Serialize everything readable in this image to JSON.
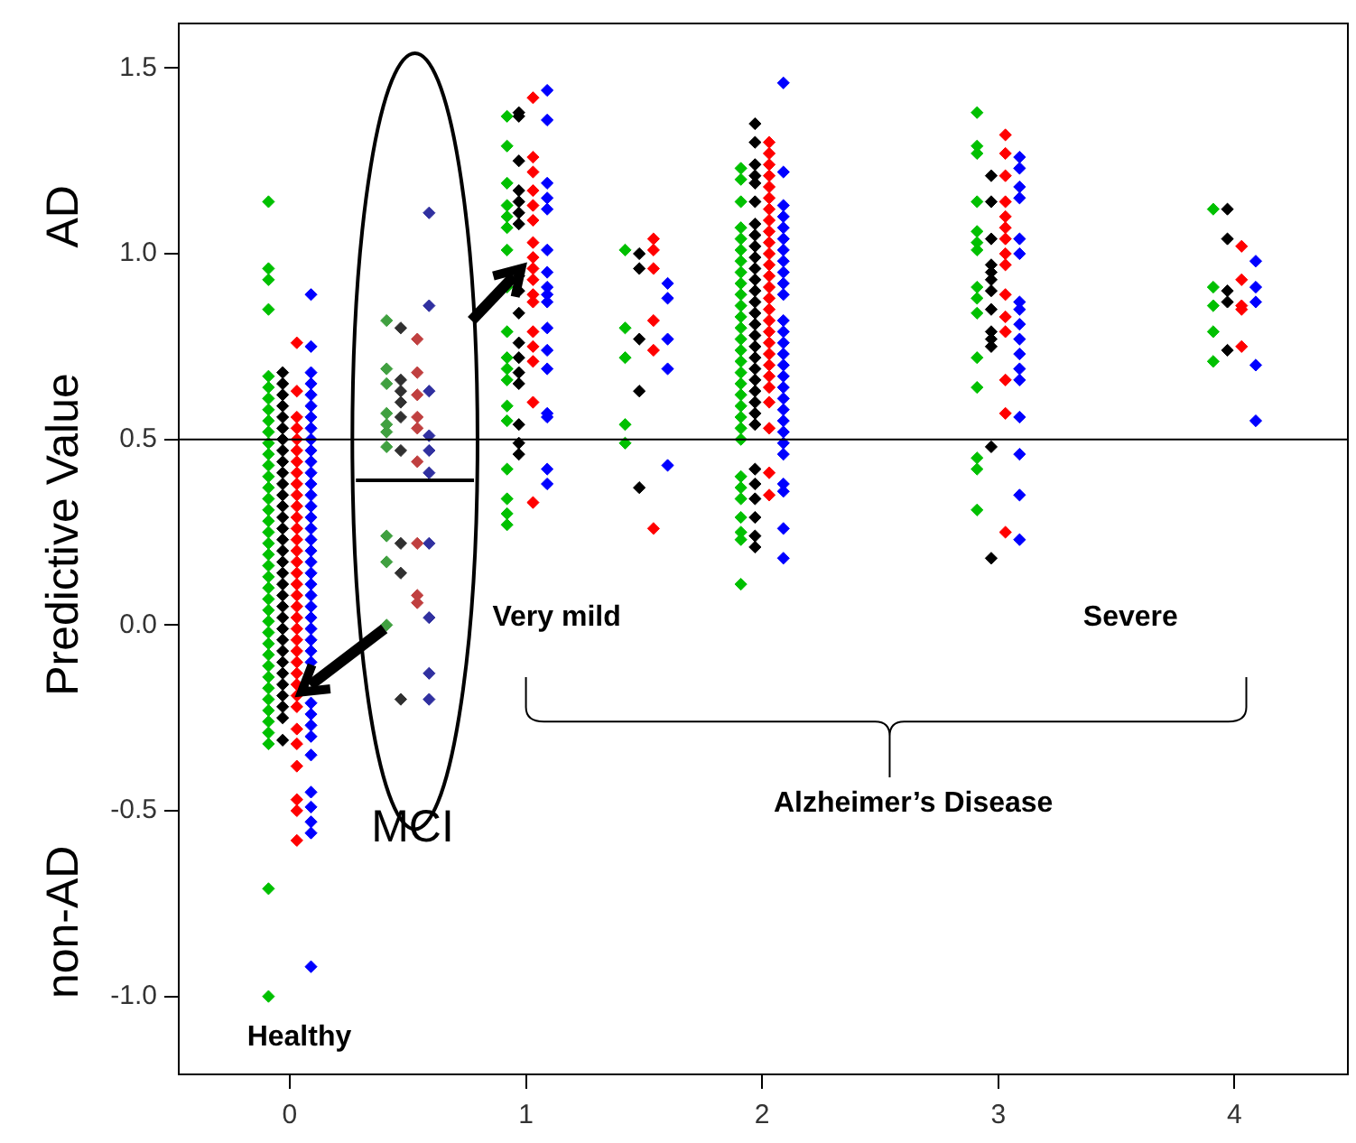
{
  "chart_data": {
    "type": "scatter",
    "ylabel": "Predictive Value",
    "xlim": [
      -0.47,
      4.48
    ],
    "ylim": [
      -1.21,
      1.62
    ],
    "xticks": [
      0,
      1,
      2,
      3,
      4
    ],
    "yticks": [
      {
        "value": -1,
        "label": "-1.0"
      },
      {
        "value": -0.5,
        "label": "-0.5"
      },
      {
        "value": 0,
        "label": "0.0"
      },
      {
        "value": 0.5,
        "label": "0.5"
      },
      {
        "value": 1,
        "label": "1.0"
      },
      {
        "value": 1.5,
        "label": "1.5"
      }
    ],
    "grid": false,
    "legend": false,
    "marker": "diamond",
    "ref_lines": [
      {
        "axis": "y",
        "value": 0.5,
        "color": "#000000"
      }
    ],
    "annotations": [
      "AD",
      "non-AD",
      "Healthy",
      "MCI",
      "Very mild",
      "Severe",
      "Alzheimer’s Disease"
    ],
    "series": [
      {
        "color": "#00c000",
        "x": [
          -0.09,
          -0.09,
          -0.09,
          -0.09,
          -0.09,
          -0.09,
          -0.09,
          -0.09,
          -0.09,
          -0.09,
          -0.09,
          -0.09,
          -0.09,
          -0.09,
          -0.09,
          -0.09,
          -0.09,
          -0.09,
          -0.09,
          -0.09,
          -0.09,
          -0.09,
          -0.09,
          -0.09,
          -0.09,
          -0.09,
          -0.09,
          -0.09,
          -0.09,
          -0.09,
          -0.09,
          -0.09,
          -0.09,
          -0.09,
          -0.09,
          -0.09,
          -0.09,
          -0.09,
          -0.09,
          -0.09,
          0.92,
          0.92,
          0.92,
          0.92,
          0.92,
          0.92,
          0.92,
          0.92,
          0.92,
          0.92,
          0.92,
          0.92,
          0.92,
          0.92,
          0.92,
          0.92,
          0.92,
          0.92,
          1.42,
          1.42,
          1.42,
          1.42,
          1.42,
          1.91,
          1.91,
          1.91,
          1.91,
          1.91,
          1.91,
          1.91,
          1.91,
          1.91,
          1.91,
          1.91,
          1.91,
          1.91,
          1.91,
          1.91,
          1.91,
          1.91,
          1.91,
          1.91,
          1.91,
          1.91,
          1.91,
          1.91,
          1.91,
          1.91,
          1.91,
          1.91,
          1.91,
          1.91,
          1.91,
          2.91,
          2.91,
          2.91,
          2.91,
          2.91,
          2.91,
          2.91,
          2.91,
          2.91,
          2.91,
          2.91,
          2.91,
          2.91,
          2.91,
          2.91,
          3.91,
          3.91,
          3.91,
          3.91,
          3.91
        ],
        "values": [
          1.14,
          0.96,
          0.93,
          0.85,
          0.67,
          0.64,
          0.61,
          0.58,
          0.55,
          0.52,
          0.49,
          0.46,
          0.43,
          0.4,
          0.37,
          0.34,
          0.31,
          0.28,
          0.25,
          0.22,
          0.19,
          0.16,
          0.13,
          0.1,
          0.07,
          0.04,
          0.01,
          -0.02,
          -0.05,
          -0.08,
          -0.11,
          -0.14,
          -0.17,
          -0.2,
          -0.23,
          -0.26,
          -0.29,
          -0.32,
          -0.71,
          -1.0,
          1.37,
          1.29,
          1.19,
          1.13,
          1.1,
          1.07,
          1.01,
          0.91,
          0.79,
          0.72,
          0.69,
          0.66,
          0.59,
          0.55,
          0.42,
          0.34,
          0.3,
          0.27,
          1.01,
          0.8,
          0.72,
          0.54,
          0.49,
          1.23,
          1.2,
          1.14,
          1.07,
          1.04,
          1.01,
          0.98,
          0.95,
          0.92,
          0.89,
          0.86,
          0.83,
          0.8,
          0.77,
          0.74,
          0.71,
          0.68,
          0.65,
          0.62,
          0.59,
          0.56,
          0.53,
          0.5,
          0.4,
          0.37,
          0.34,
          0.29,
          0.25,
          0.23,
          0.11,
          1.38,
          1.29,
          1.27,
          1.14,
          1.06,
          1.03,
          1.01,
          0.91,
          0.88,
          0.84,
          0.72,
          0.64,
          0.45,
          0.42,
          0.31,
          1.12,
          0.91,
          0.86,
          0.79,
          0.71
        ]
      },
      {
        "color": "#000000",
        "x": [
          -0.03,
          -0.03,
          -0.03,
          -0.03,
          -0.03,
          -0.03,
          -0.03,
          -0.03,
          -0.03,
          -0.03,
          -0.03,
          -0.03,
          -0.03,
          -0.03,
          -0.03,
          -0.03,
          -0.03,
          -0.03,
          -0.03,
          -0.03,
          -0.03,
          -0.03,
          -0.03,
          -0.03,
          -0.03,
          -0.03,
          -0.03,
          -0.03,
          -0.03,
          -0.03,
          -0.03,
          -0.03,
          -0.03,
          0.97,
          0.97,
          0.97,
          0.97,
          0.97,
          0.97,
          0.97,
          0.97,
          0.97,
          0.97,
          0.97,
          0.97,
          0.97,
          0.97,
          0.97,
          0.97,
          0.97,
          1.48,
          1.48,
          1.48,
          1.48,
          1.48,
          1.97,
          1.97,
          1.97,
          1.97,
          1.97,
          1.97,
          1.97,
          1.97,
          1.97,
          1.97,
          1.97,
          1.97,
          1.97,
          1.97,
          1.97,
          1.97,
          1.97,
          1.97,
          1.97,
          1.97,
          1.97,
          1.97,
          1.97,
          1.97,
          1.97,
          1.97,
          1.97,
          1.97,
          1.97,
          1.97,
          1.97,
          2.97,
          2.97,
          2.97,
          2.97,
          2.97,
          2.97,
          2.97,
          2.97,
          2.97,
          2.97,
          2.97,
          2.97,
          2.97,
          3.97,
          3.97,
          3.97,
          3.97,
          3.97
        ],
        "values": [
          0.68,
          0.65,
          0.62,
          0.59,
          0.56,
          0.53,
          0.5,
          0.47,
          0.44,
          0.41,
          0.38,
          0.35,
          0.32,
          0.29,
          0.26,
          0.23,
          0.2,
          0.17,
          0.14,
          0.11,
          0.08,
          0.05,
          0.02,
          -0.01,
          -0.04,
          -0.07,
          -0.1,
          -0.13,
          -0.16,
          -0.19,
          -0.22,
          -0.25,
          -0.31,
          1.38,
          1.37,
          1.25,
          1.17,
          1.14,
          1.11,
          1.08,
          0.94,
          0.9,
          0.84,
          0.76,
          0.72,
          0.68,
          0.65,
          0.54,
          0.49,
          0.46,
          1.0,
          0.96,
          0.77,
          0.63,
          0.37,
          1.35,
          1.3,
          1.24,
          1.21,
          1.19,
          1.14,
          1.08,
          1.05,
          1.02,
          0.99,
          0.96,
          0.93,
          0.9,
          0.87,
          0.84,
          0.81,
          0.78,
          0.75,
          0.72,
          0.69,
          0.66,
          0.63,
          0.6,
          0.57,
          0.54,
          0.42,
          0.38,
          0.34,
          0.29,
          0.24,
          0.21,
          1.21,
          1.14,
          1.04,
          0.97,
          0.95,
          0.93,
          0.9,
          0.85,
          0.79,
          0.77,
          0.75,
          0.48,
          0.18,
          1.12,
          1.04,
          0.9,
          0.87,
          0.74
        ]
      },
      {
        "color": "#ff0000",
        "x": [
          0.03,
          0.03,
          0.03,
          0.03,
          0.03,
          0.03,
          0.03,
          0.03,
          0.03,
          0.03,
          0.03,
          0.03,
          0.03,
          0.03,
          0.03,
          0.03,
          0.03,
          0.03,
          0.03,
          0.03,
          0.03,
          0.03,
          0.03,
          0.03,
          0.03,
          0.03,
          0.03,
          0.03,
          0.03,
          0.03,
          0.03,
          0.03,
          0.03,
          0.03,
          0.03,
          1.03,
          1.03,
          1.03,
          1.03,
          1.03,
          1.03,
          1.03,
          1.03,
          1.03,
          1.03,
          1.03,
          1.03,
          1.03,
          1.03,
          1.03,
          1.03,
          1.03,
          1.54,
          1.54,
          1.54,
          1.54,
          1.54,
          1.54,
          2.03,
          2.03,
          2.03,
          2.03,
          2.03,
          2.03,
          2.03,
          2.03,
          2.03,
          2.03,
          2.03,
          2.03,
          2.03,
          2.03,
          2.03,
          2.03,
          2.03,
          2.03,
          2.03,
          2.03,
          2.03,
          2.03,
          2.03,
          2.03,
          2.03,
          2.03,
          2.03,
          3.03,
          3.03,
          3.03,
          3.03,
          3.03,
          3.03,
          3.03,
          3.03,
          3.03,
          3.03,
          3.03,
          3.03,
          3.03,
          3.03,
          3.03,
          4.03,
          4.03,
          4.03,
          4.03,
          4.03
        ],
        "values": [
          0.76,
          0.63,
          0.56,
          0.53,
          0.5,
          0.47,
          0.44,
          0.41,
          0.38,
          0.35,
          0.32,
          0.29,
          0.26,
          0.23,
          0.2,
          0.17,
          0.14,
          0.11,
          0.08,
          0.05,
          0.02,
          -0.01,
          -0.04,
          -0.07,
          -0.1,
          -0.13,
          -0.16,
          -0.19,
          -0.22,
          -0.28,
          -0.32,
          -0.38,
          -0.47,
          -0.5,
          -0.58,
          1.42,
          1.26,
          1.22,
          1.17,
          1.13,
          1.09,
          1.03,
          0.99,
          0.96,
          0.93,
          0.89,
          0.87,
          0.79,
          0.75,
          0.71,
          0.6,
          0.33,
          1.04,
          1.01,
          0.96,
          0.82,
          0.74,
          0.26,
          1.3,
          1.27,
          1.24,
          1.21,
          1.18,
          1.15,
          1.12,
          1.09,
          1.06,
          1.03,
          1.0,
          0.97,
          0.94,
          0.91,
          0.88,
          0.85,
          0.82,
          0.79,
          0.76,
          0.73,
          0.7,
          0.67,
          0.64,
          0.6,
          0.53,
          0.41,
          0.35,
          1.32,
          1.27,
          1.21,
          1.14,
          1.1,
          1.07,
          1.04,
          1.0,
          0.97,
          0.89,
          0.83,
          0.79,
          0.66,
          0.57,
          0.25,
          1.02,
          0.93,
          0.86,
          0.85,
          0.75
        ]
      },
      {
        "color": "#0000ff",
        "x": [
          0.09,
          0.09,
          0.09,
          0.09,
          0.09,
          0.09,
          0.09,
          0.09,
          0.09,
          0.09,
          0.09,
          0.09,
          0.09,
          0.09,
          0.09,
          0.09,
          0.09,
          0.09,
          0.09,
          0.09,
          0.09,
          0.09,
          0.09,
          0.09,
          0.09,
          0.09,
          0.09,
          0.09,
          0.09,
          0.09,
          0.09,
          0.09,
          0.09,
          0.09,
          0.09,
          0.09,
          0.09,
          0.09,
          0.09,
          1.09,
          1.09,
          1.09,
          1.09,
          1.09,
          1.09,
          1.09,
          1.09,
          1.09,
          1.09,
          1.09,
          1.09,
          1.09,
          1.09,
          1.09,
          1.09,
          1.09,
          1.6,
          1.6,
          1.6,
          1.6,
          1.6,
          2.09,
          2.09,
          2.09,
          2.09,
          2.09,
          2.09,
          2.09,
          2.09,
          2.09,
          2.09,
          2.09,
          2.09,
          2.09,
          2.09,
          2.09,
          2.09,
          2.09,
          2.09,
          2.09,
          2.09,
          2.09,
          2.09,
          2.09,
          2.09,
          2.09,
          2.09,
          2.09,
          2.09,
          3.09,
          3.09,
          3.09,
          3.09,
          3.09,
          3.09,
          3.09,
          3.09,
          3.09,
          3.09,
          3.09,
          3.09,
          3.09,
          3.09,
          3.09,
          3.09,
          3.09,
          4.09,
          4.09,
          4.09,
          4.09,
          4.09
        ],
        "values": [
          0.89,
          0.75,
          0.68,
          0.65,
          0.62,
          0.59,
          0.56,
          0.53,
          0.5,
          0.47,
          0.44,
          0.41,
          0.38,
          0.35,
          0.32,
          0.29,
          0.26,
          0.23,
          0.2,
          0.17,
          0.14,
          0.11,
          0.08,
          0.05,
          0.02,
          -0.01,
          -0.04,
          -0.07,
          -0.1,
          -0.21,
          -0.24,
          -0.27,
          -0.3,
          -0.35,
          -0.45,
          -0.49,
          -0.53,
          -0.56,
          -0.92,
          1.44,
          1.36,
          1.19,
          1.15,
          1.12,
          1.01,
          0.95,
          0.91,
          0.89,
          0.87,
          0.8,
          0.74,
          0.69,
          0.57,
          0.56,
          0.42,
          0.38,
          0.92,
          0.88,
          0.77,
          0.69,
          0.43,
          1.46,
          1.22,
          1.13,
          1.1,
          1.07,
          1.04,
          1.01,
          0.98,
          0.95,
          0.92,
          0.89,
          0.82,
          0.79,
          0.76,
          0.73,
          0.7,
          0.67,
          0.64,
          0.61,
          0.58,
          0.55,
          0.52,
          0.49,
          0.46,
          0.38,
          0.36,
          0.26,
          0.18,
          1.26,
          1.23,
          1.18,
          1.15,
          1.04,
          1.0,
          0.87,
          0.85,
          0.81,
          0.77,
          0.73,
          0.69,
          0.66,
          0.56,
          0.46,
          0.35,
          0.23,
          0.98,
          0.91,
          0.87,
          0.7,
          0.55
        ]
      },
      {
        "color": "#40a040",
        "x": [
          0.41,
          0.41,
          0.41,
          0.41,
          0.41,
          0.41,
          0.41,
          0.41,
          0.41,
          0.41
        ],
        "values": [
          0.82,
          0.69,
          0.65,
          0.57,
          0.54,
          0.52,
          0.48,
          0.24,
          0.17,
          0.0
        ]
      },
      {
        "color": "#303030",
        "x": [
          0.47,
          0.47,
          0.47,
          0.47,
          0.47,
          0.47,
          0.47,
          0.47,
          0.47
        ],
        "values": [
          0.8,
          0.66,
          0.63,
          0.6,
          0.56,
          0.47,
          0.22,
          0.14,
          -0.2
        ]
      },
      {
        "color": "#c04040",
        "x": [
          0.54,
          0.54,
          0.54,
          0.54,
          0.54,
          0.54,
          0.54,
          0.54,
          0.54
        ],
        "values": [
          0.77,
          0.68,
          0.62,
          0.56,
          0.53,
          0.44,
          0.22,
          0.08,
          0.06
        ]
      },
      {
        "color": "#3030a0",
        "x": [
          0.59,
          0.59,
          0.59,
          0.59,
          0.59,
          0.59,
          0.59,
          0.59,
          0.59,
          0.59
        ],
        "values": [
          1.11,
          0.86,
          0.63,
          0.51,
          0.47,
          0.41,
          0.22,
          0.02,
          -0.13,
          -0.2
        ]
      },
      {
        "type": "line",
        "color": "#000000",
        "marker": "none",
        "x": [
          0.28,
          0.78
        ],
        "values": [
          0.39,
          0.39
        ]
      }
    ]
  }
}
